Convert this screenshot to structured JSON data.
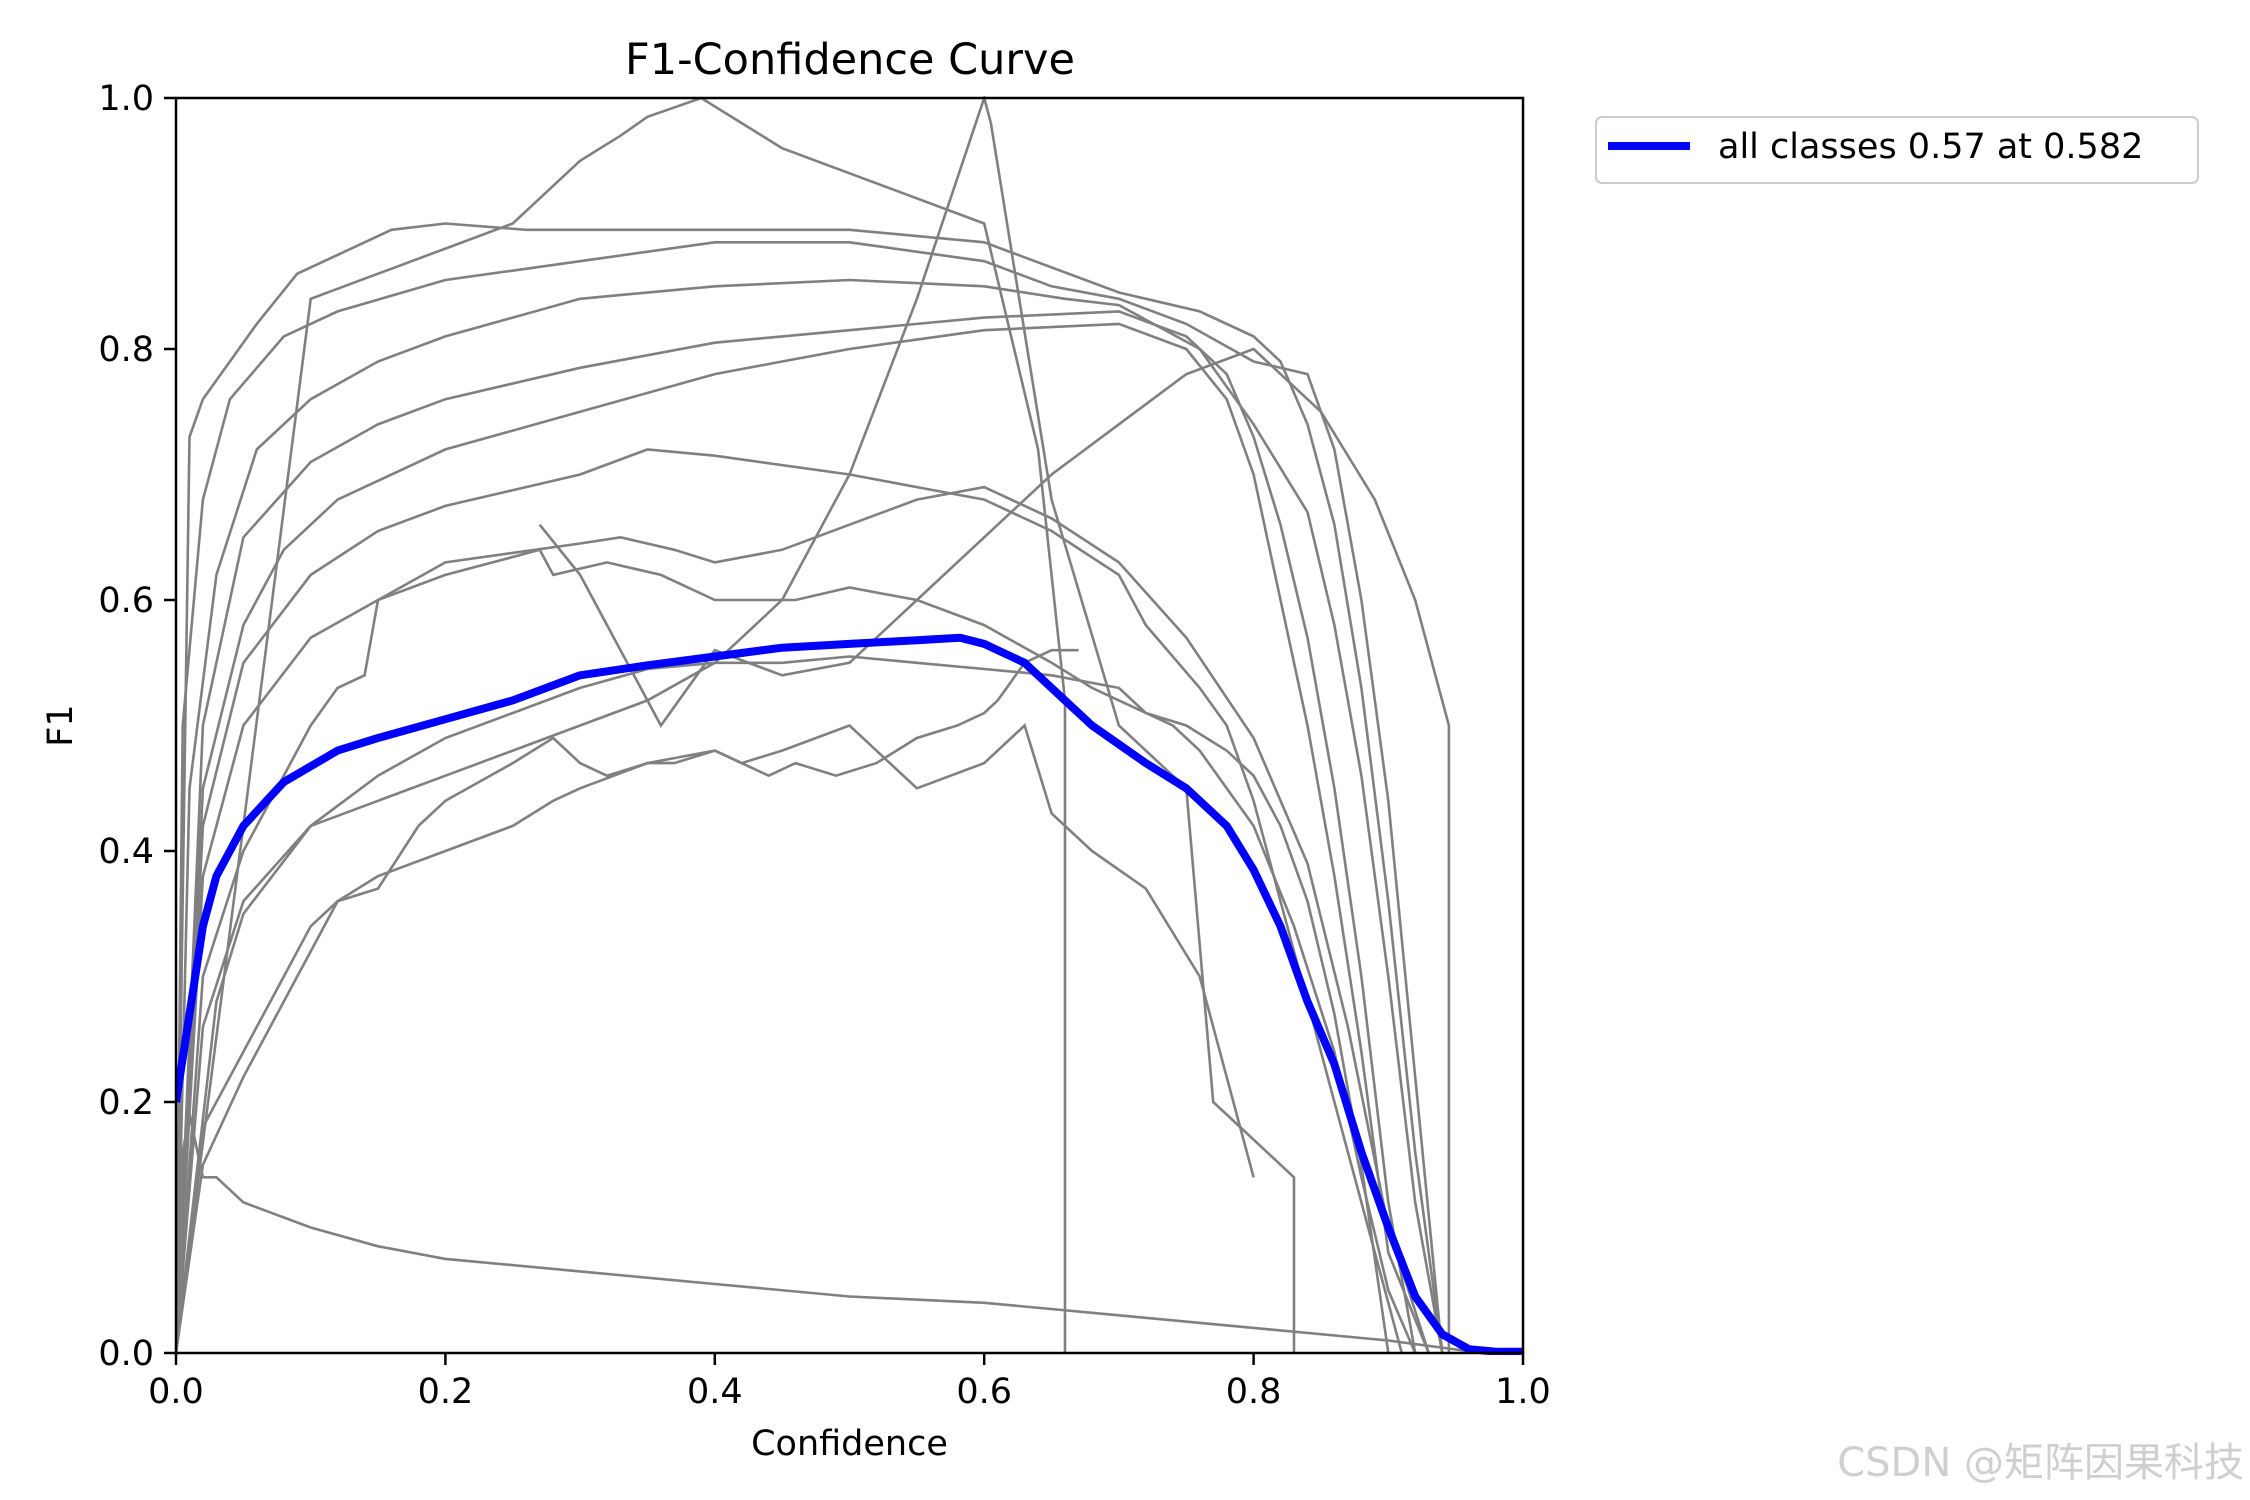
{
  "chart_data": {
    "type": "line",
    "title": "F1-Confidence Curve",
    "xlabel": "Confidence",
    "ylabel": "F1",
    "xlim": [
      0,
      1
    ],
    "ylim": [
      0,
      1
    ],
    "xticks": [
      "0.0",
      "0.2",
      "0.4",
      "0.6",
      "0.8",
      "1.0"
    ],
    "yticks": [
      "0.0",
      "0.2",
      "0.4",
      "0.6",
      "0.8",
      "1.0"
    ],
    "legend": {
      "placement": "outside-top-right",
      "entries": [
        "all classes 0.57 at 0.582"
      ]
    },
    "colors": {
      "classes": "#808080",
      "all": "#0000ff"
    },
    "series": [
      {
        "name": "all classes 0.57 at 0.582",
        "role": "all",
        "x": [
          0,
          0.01,
          0.02,
          0.03,
          0.05,
          0.08,
          0.12,
          0.15,
          0.2,
          0.25,
          0.3,
          0.35,
          0.4,
          0.45,
          0.5,
          0.55,
          0.582,
          0.6,
          0.63,
          0.66,
          0.68,
          0.7,
          0.72,
          0.75,
          0.78,
          0.8,
          0.82,
          0.84,
          0.86,
          0.88,
          0.9,
          0.92,
          0.94,
          0.96,
          0.98,
          1.0
        ],
        "y": [
          0.2,
          0.27,
          0.34,
          0.38,
          0.42,
          0.455,
          0.48,
          0.49,
          0.505,
          0.52,
          0.54,
          0.548,
          0.555,
          0.562,
          0.565,
          0.568,
          0.57,
          0.565,
          0.55,
          0.52,
          0.5,
          0.485,
          0.47,
          0.45,
          0.42,
          0.385,
          0.34,
          0.28,
          0.23,
          0.16,
          0.1,
          0.045,
          0.015,
          0.003,
          0.001,
          0.001
        ]
      },
      {
        "role": "class",
        "x": [
          0,
          0.01,
          0.02,
          0.04,
          0.06,
          0.09,
          0.12,
          0.16,
          0.2,
          0.26,
          0.3,
          0.4,
          0.5,
          0.6,
          0.7,
          0.76,
          0.8,
          0.82,
          0.84,
          0.86,
          0.88,
          0.9,
          0.92,
          0.94
        ],
        "y": [
          0,
          0.73,
          0.76,
          0.79,
          0.82,
          0.86,
          0.875,
          0.895,
          0.9,
          0.895,
          0.895,
          0.895,
          0.895,
          0.885,
          0.845,
          0.83,
          0.81,
          0.79,
          0.74,
          0.66,
          0.53,
          0.36,
          0.16,
          0
        ]
      },
      {
        "role": "class",
        "x": [
          0,
          0.005,
          0.02,
          0.04,
          0.08,
          0.12,
          0.2,
          0.3,
          0.4,
          0.5,
          0.6,
          0.65,
          0.7,
          0.75,
          0.8,
          0.84,
          0.86,
          0.88,
          0.9,
          0.92,
          0.94
        ],
        "y": [
          0,
          0.5,
          0.68,
          0.76,
          0.81,
          0.83,
          0.855,
          0.87,
          0.885,
          0.885,
          0.87,
          0.85,
          0.84,
          0.82,
          0.79,
          0.78,
          0.72,
          0.6,
          0.44,
          0.22,
          0
        ]
      },
      {
        "role": "class",
        "x": [
          0,
          0.01,
          0.03,
          0.06,
          0.1,
          0.15,
          0.2,
          0.3,
          0.4,
          0.5,
          0.6,
          0.66,
          0.7,
          0.76,
          0.8,
          0.84,
          0.86,
          0.88,
          0.9,
          0.92,
          0.94
        ],
        "y": [
          0,
          0.45,
          0.62,
          0.72,
          0.76,
          0.79,
          0.81,
          0.84,
          0.85,
          0.855,
          0.85,
          0.84,
          0.835,
          0.8,
          0.74,
          0.67,
          0.58,
          0.46,
          0.3,
          0.12,
          0
        ]
      },
      {
        "role": "class",
        "x": [
          0,
          0.02,
          0.05,
          0.1,
          0.15,
          0.2,
          0.3,
          0.4,
          0.5,
          0.6,
          0.7,
          0.75,
          0.78,
          0.8,
          0.82,
          0.84,
          0.86,
          0.88,
          0.9,
          0.92
        ],
        "y": [
          0,
          0.5,
          0.65,
          0.71,
          0.74,
          0.76,
          0.785,
          0.805,
          0.815,
          0.825,
          0.83,
          0.81,
          0.78,
          0.73,
          0.66,
          0.57,
          0.45,
          0.3,
          0.12,
          0
        ]
      },
      {
        "role": "class",
        "x": [
          0,
          0.02,
          0.05,
          0.08,
          0.12,
          0.2,
          0.3,
          0.4,
          0.45,
          0.5,
          0.6,
          0.7,
          0.75,
          0.78,
          0.8,
          0.82,
          0.84,
          0.86,
          0.88,
          0.9,
          0.93
        ],
        "y": [
          0,
          0.45,
          0.58,
          0.64,
          0.68,
          0.72,
          0.75,
          0.78,
          0.79,
          0.8,
          0.815,
          0.82,
          0.8,
          0.76,
          0.7,
          0.6,
          0.5,
          0.38,
          0.24,
          0.08,
          0
        ]
      },
      {
        "role": "class",
        "x": [
          0,
          0.02,
          0.05,
          0.1,
          0.15,
          0.2,
          0.3,
          0.35,
          0.4,
          0.5,
          0.55,
          0.6,
          0.65,
          0.7,
          0.72,
          0.76,
          0.78,
          0.8,
          0.82,
          0.84,
          0.86,
          0.88,
          0.9,
          0.91
        ],
        "y": [
          0,
          0.42,
          0.55,
          0.62,
          0.655,
          0.675,
          0.7,
          0.72,
          0.715,
          0.7,
          0.69,
          0.68,
          0.655,
          0.62,
          0.58,
          0.53,
          0.5,
          0.44,
          0.36,
          0.28,
          0.2,
          0.12,
          0.04,
          0
        ]
      },
      {
        "role": "class",
        "x": [
          0,
          0.02,
          0.05,
          0.1,
          0.15,
          0.2,
          0.3,
          0.33,
          0.37,
          0.4,
          0.45,
          0.5,
          0.55,
          0.6,
          0.65,
          0.7,
          0.75,
          0.8,
          0.84,
          0.87,
          0.9,
          0.93
        ],
        "y": [
          0,
          0.38,
          0.5,
          0.57,
          0.6,
          0.63,
          0.645,
          0.65,
          0.64,
          0.63,
          0.64,
          0.66,
          0.68,
          0.69,
          0.665,
          0.63,
          0.57,
          0.49,
          0.39,
          0.26,
          0.1,
          0
        ]
      },
      {
        "role": "class",
        "x": [
          0,
          0.02,
          0.05,
          0.08,
          0.1,
          0.12,
          0.14,
          0.15,
          0.2,
          0.27,
          0.28,
          0.32,
          0.36,
          0.4,
          0.46,
          0.5,
          0.55,
          0.6,
          0.65,
          0.68,
          0.7,
          0.74,
          0.76,
          0.8,
          0.83,
          0.86,
          0.88,
          0.9,
          0.92
        ],
        "y": [
          0,
          0.3,
          0.4,
          0.46,
          0.5,
          0.53,
          0.54,
          0.6,
          0.62,
          0.64,
          0.62,
          0.63,
          0.62,
          0.6,
          0.6,
          0.61,
          0.6,
          0.58,
          0.55,
          0.53,
          0.52,
          0.5,
          0.48,
          0.42,
          0.34,
          0.24,
          0.14,
          0.05,
          0
        ]
      },
      {
        "role": "class",
        "x": [
          0,
          0.02,
          0.05,
          0.1,
          0.15,
          0.2,
          0.25,
          0.3,
          0.35,
          0.4,
          0.45,
          0.5,
          0.55,
          0.6,
          0.65,
          0.7,
          0.72,
          0.75,
          0.78,
          0.8,
          0.82,
          0.84,
          0.86,
          0.88,
          0.9
        ],
        "y": [
          0,
          0.26,
          0.36,
          0.42,
          0.46,
          0.49,
          0.51,
          0.53,
          0.545,
          0.55,
          0.55,
          0.555,
          0.55,
          0.545,
          0.54,
          0.53,
          0.51,
          0.5,
          0.48,
          0.46,
          0.42,
          0.36,
          0.27,
          0.15,
          0
        ]
      },
      {
        "role": "class",
        "x": [
          0,
          0.02,
          0.05,
          0.08,
          0.1,
          0.12,
          0.15,
          0.18,
          0.2,
          0.25,
          0.28,
          0.3,
          0.32,
          0.35,
          0.37,
          0.4,
          0.44,
          0.46,
          0.49,
          0.52,
          0.55,
          0.58,
          0.6,
          0.61,
          0.63,
          0.65,
          0.67
        ],
        "y": [
          0,
          0.18,
          0.24,
          0.3,
          0.34,
          0.36,
          0.37,
          0.42,
          0.44,
          0.47,
          0.49,
          0.47,
          0.46,
          0.47,
          0.47,
          0.48,
          0.46,
          0.47,
          0.46,
          0.47,
          0.49,
          0.5,
          0.51,
          0.52,
          0.55,
          0.56,
          0.56
        ]
      },
      {
        "role": "class",
        "x": [
          0,
          0.005,
          0.01,
          0.02,
          0.03,
          0.05,
          0.1,
          0.15,
          0.2,
          0.3,
          0.4,
          0.5,
          0.6,
          0.7,
          0.8,
          0.9,
          0.97
        ],
        "y": [
          0.03,
          0.16,
          0.19,
          0.14,
          0.14,
          0.12,
          0.1,
          0.085,
          0.075,
          0.065,
          0.055,
          0.045,
          0.04,
          0.03,
          0.02,
          0.01,
          0
        ]
      },
      {
        "role": "class",
        "x": [
          0,
          0.02,
          0.05,
          0.1,
          0.12,
          0.15,
          0.2,
          0.25,
          0.28,
          0.3,
          0.35,
          0.4,
          0.42,
          0.45,
          0.5,
          0.55,
          0.6,
          0.63,
          0.65,
          0.68,
          0.72,
          0.76,
          0.8
        ],
        "y": [
          0,
          0.15,
          0.22,
          0.32,
          0.36,
          0.38,
          0.4,
          0.42,
          0.44,
          0.45,
          0.47,
          0.48,
          0.47,
          0.48,
          0.5,
          0.45,
          0.47,
          0.5,
          0.43,
          0.4,
          0.37,
          0.3,
          0.14
        ]
      },
      {
        "role": "class",
        "x": [
          0,
          0.1,
          0.15,
          0.2,
          0.25,
          0.28,
          0.3,
          0.33,
          0.35,
          0.39,
          0.42,
          0.45,
          0.5,
          0.6,
          0.64,
          0.66,
          0.66
        ],
        "y": [
          0,
          0.84,
          0.86,
          0.88,
          0.9,
          0.93,
          0.95,
          0.97,
          0.985,
          1.0,
          0.98,
          0.96,
          0.94,
          0.9,
          0.72,
          0.52,
          0
        ]
      },
      {
        "role": "class",
        "x": [
          0,
          0.03,
          0.05,
          0.1,
          0.15,
          0.2,
          0.25,
          0.3,
          0.35,
          0.4,
          0.45,
          0.5,
          0.55,
          0.6,
          0.605,
          0.62,
          0.65,
          0.7,
          0.75,
          0.77,
          0.83,
          0.83
        ],
        "y": [
          0,
          0.28,
          0.35,
          0.42,
          0.44,
          0.46,
          0.48,
          0.5,
          0.52,
          0.55,
          0.6,
          0.7,
          0.84,
          1.0,
          0.98,
          0.88,
          0.68,
          0.5,
          0.45,
          0.2,
          0.14,
          0
        ]
      },
      {
        "role": "class",
        "x": [
          0.27,
          0.3,
          0.33,
          0.36,
          0.4,
          0.45,
          0.5,
          0.55,
          0.6,
          0.65,
          0.7,
          0.75,
          0.8,
          0.85,
          0.89,
          0.92,
          0.945,
          0.945
        ],
        "y": [
          0.66,
          0.62,
          0.56,
          0.5,
          0.56,
          0.54,
          0.55,
          0.6,
          0.65,
          0.7,
          0.74,
          0.78,
          0.8,
          0.75,
          0.68,
          0.6,
          0.5,
          0
        ]
      }
    ]
  }
}
